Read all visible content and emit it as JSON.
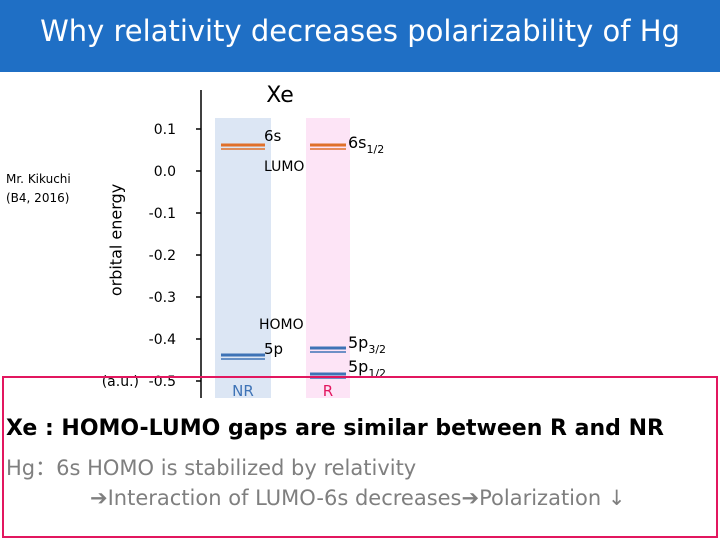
{
  "header": {
    "title": "Why relativity decreases polarizability of Hg"
  },
  "note": {
    "line1": "Mr. Kikuchi",
    "line2": "(B4, 2016)"
  },
  "diagram": {
    "element": "Xe",
    "ylabel": "orbital energy",
    "unit": "(a.u.)",
    "ticks": [
      "0.1",
      "0.0",
      "-0.1",
      "-0.2",
      "-0.3",
      "-0.4",
      "-0.5"
    ],
    "column_nr_label": "NR",
    "column_r_label": "R",
    "nr_levels": [
      {
        "name": "6s",
        "tag": "LUMO"
      },
      {
        "name": "5p",
        "tag": "HOMO"
      }
    ],
    "r_levels": [
      {
        "name": "6s",
        "sub": "1/2"
      },
      {
        "name": "5p",
        "sub": "3/2"
      },
      {
        "name": "5p",
        "sub": "1/2"
      }
    ],
    "colors": {
      "nr_band": "#dce6f4",
      "r_band": "#fde4f6",
      "s_level": "#e0702a",
      "p_level": "#3e73b6",
      "nr_text": "#3e73b6",
      "r_text": "#e2175f"
    }
  },
  "message": {
    "line1": "Xe : HOMO-LUMO gaps are similar between R and NR",
    "line2": "Hg：6s HOMO is stabilized by relativity",
    "line3_a": "Interaction of LUMO-6s decreases",
    "line3_b": "Polarization ↓"
  }
}
